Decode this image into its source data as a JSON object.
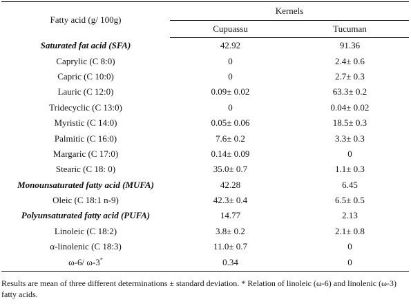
{
  "header": {
    "col1": "Fatty acid (g/ 100g)",
    "group": "Kernels",
    "col2": "Cupuassu",
    "col3": "Tucuman"
  },
  "rows": [
    {
      "label": "Saturated fat acid ",
      "abbr": "(SFA)",
      "cupuassu": "42.92",
      "tucuman": "91.36",
      "category": true
    },
    {
      "label": "Caprylic (C 8:0)",
      "cupuassu": "0",
      "tucuman": "2.4± 0.6"
    },
    {
      "label": "Capric (C 10:0)",
      "cupuassu": "0",
      "tucuman": "2.7± 0.3"
    },
    {
      "label": "Lauric (C 12:0)",
      "cupuassu": "0.09± 0.02",
      "tucuman": "63.3± 0.2"
    },
    {
      "label": "Tridecyclic (C 13:0)",
      "cupuassu": "0",
      "tucuman": "0.04± 0.02"
    },
    {
      "label": "Myristic (C 14:0)",
      "cupuassu": "0.05± 0.06",
      "tucuman": "18.5± 0.3"
    },
    {
      "label": "Palmitic (C 16:0)",
      "cupuassu": "7.6± 0.2",
      "tucuman": "3.3± 0.3"
    },
    {
      "label": "Margaric (C 17:0)",
      "cupuassu": "0.14± 0.09",
      "tucuman": "0"
    },
    {
      "label": "Stearic (C 18: 0)",
      "cupuassu": "35.0± 0.7",
      "tucuman": "1.1± 0.3"
    },
    {
      "label": "Monounsaturated fatty acid ",
      "abbr": "(MUFA)",
      "cupuassu": "42.28",
      "tucuman": "6.45",
      "category": true
    },
    {
      "label": "Oleic (C 18:1 n-9)",
      "cupuassu": "42.3± 0.4",
      "tucuman": "6.5± 0.5"
    },
    {
      "label": "Polyunsaturated fatty acid ",
      "abbr": "(PUFA)",
      "cupuassu": "14.77",
      "tucuman": "2.13",
      "category": true
    },
    {
      "label": "Linoleic (C 18:2)",
      "cupuassu": "3.8± 0.2",
      "tucuman": "2.1± 0.8"
    },
    {
      "label": "α-linolenic (C 18:3)",
      "cupuassu": "11.0± 0.7",
      "tucuman": "0"
    },
    {
      "label": "ω-6/ ω-3",
      "sup": "*",
      "cupuassu": "0.34",
      "tucuman": "0"
    }
  ],
  "footnote": "Results are mean of three different determinations ± standard deviation. * Relation of linoleic (ω-6) and linolenic (ω-3) fatty acids."
}
